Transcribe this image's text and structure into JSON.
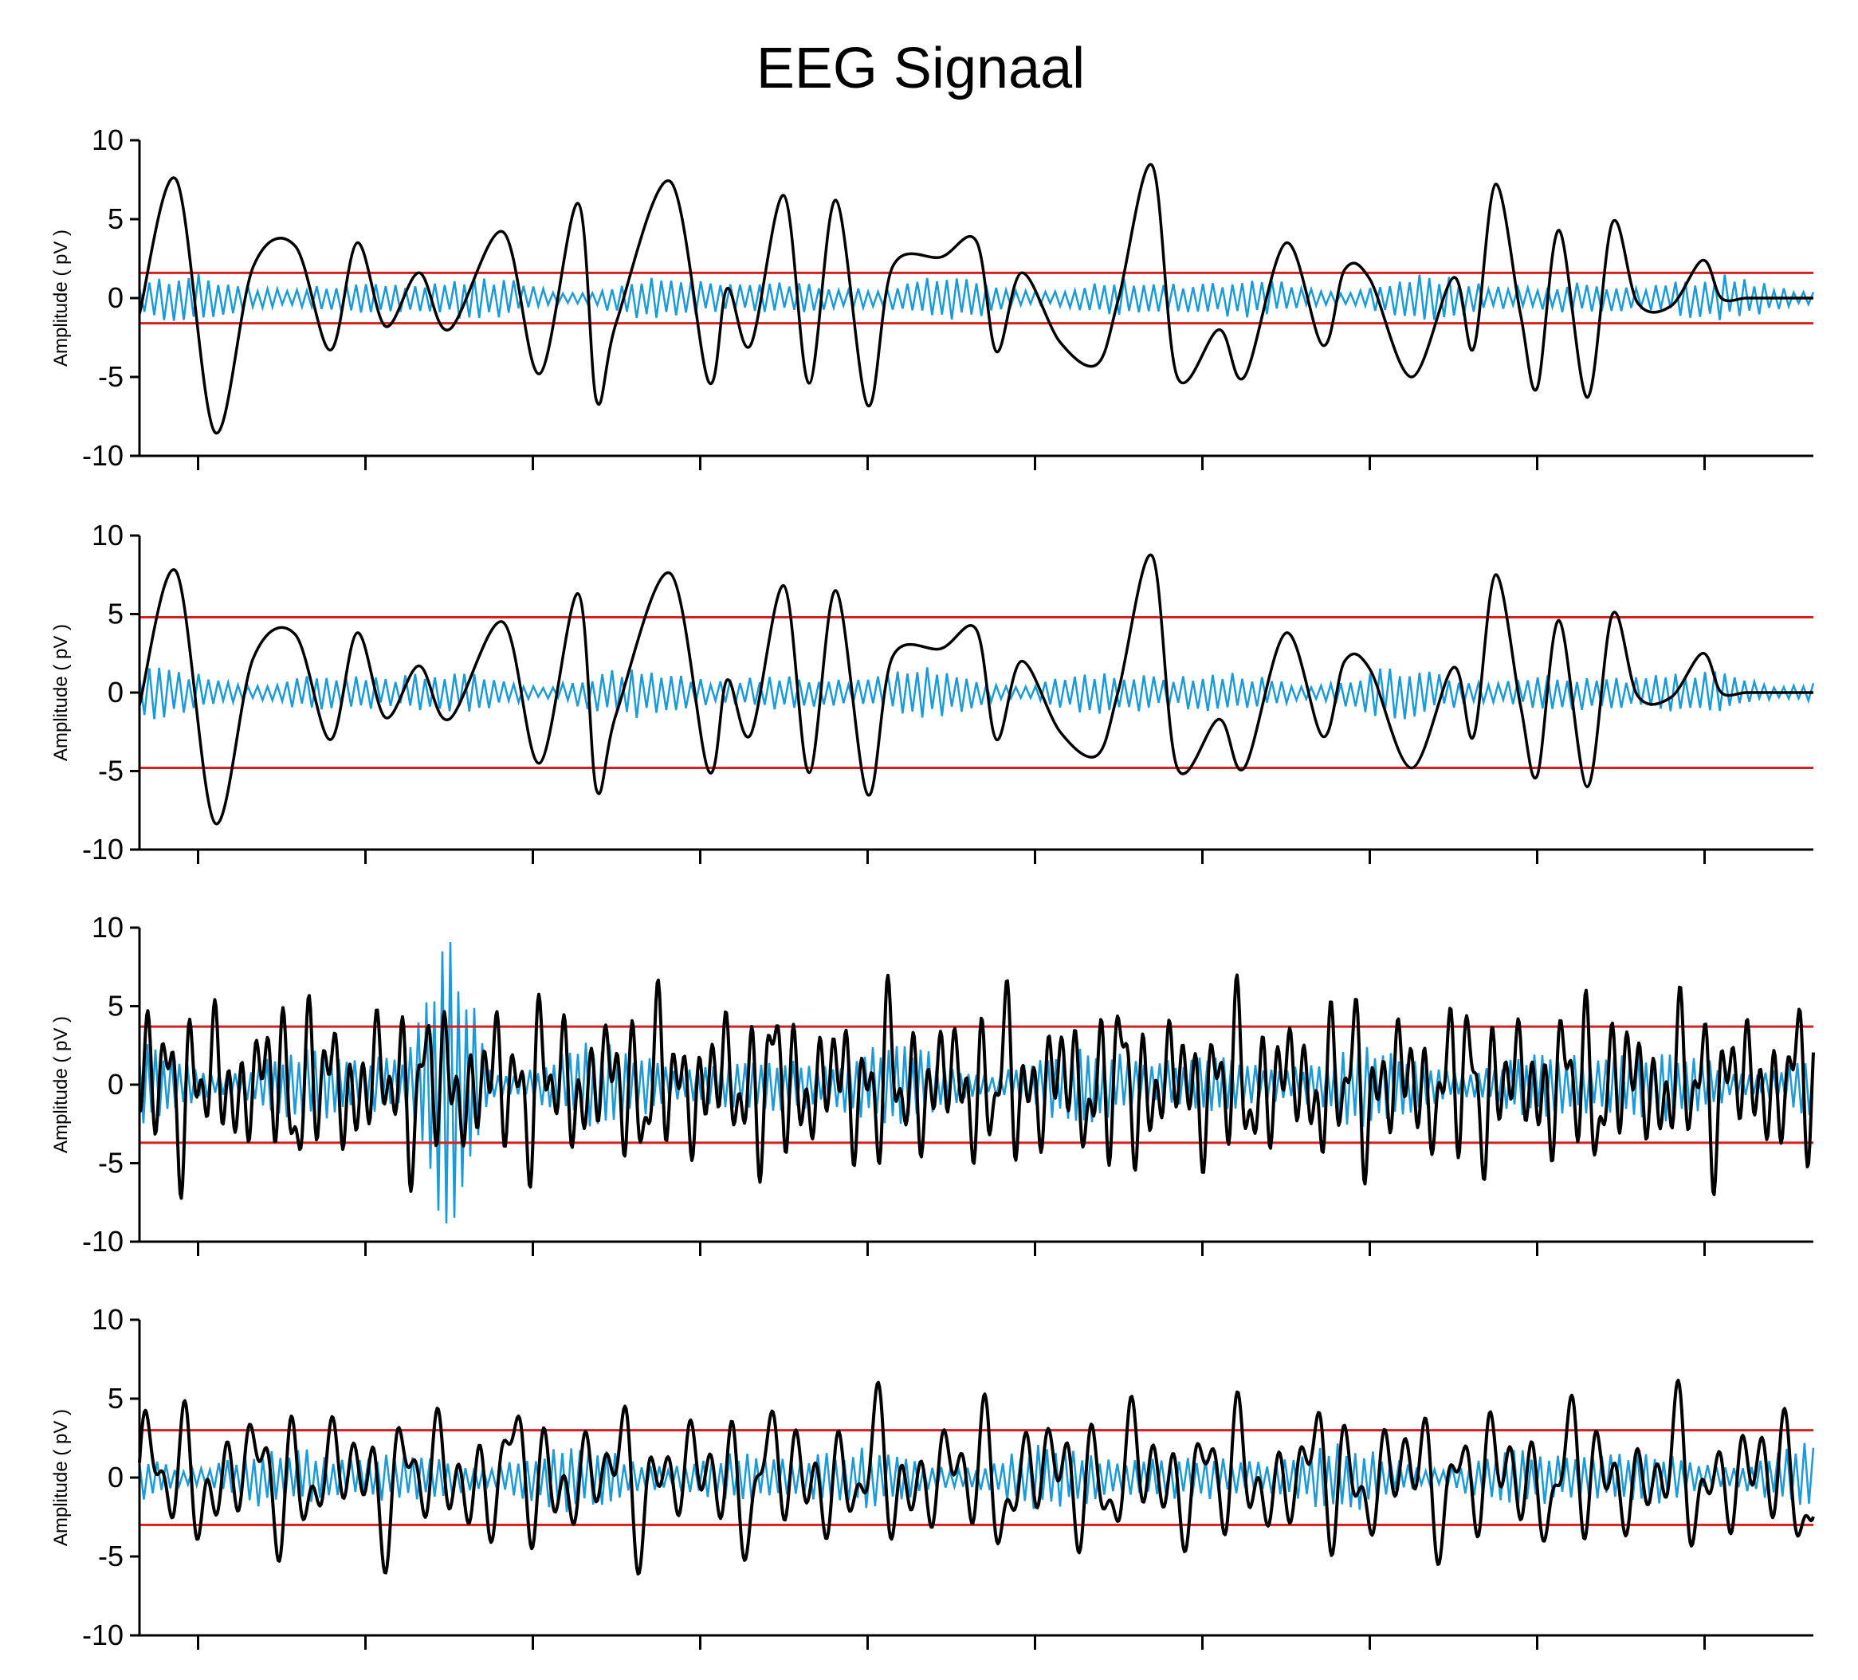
{
  "title": "EEG Signaal",
  "colors": {
    "eeg": "#000000",
    "filtered": "#1a9ad6",
    "threshold": "#d42020"
  },
  "chart_data": [
    {
      "type": "line",
      "ylabel": "Amplitude ( pV )",
      "ylim": [
        -10,
        10
      ],
      "yticks": [
        10,
        5,
        0,
        -5,
        -10
      ],
      "xlim": [
        0,
        100
      ],
      "xticks": [
        3.5,
        13.5,
        23.5,
        33.5,
        43.5,
        53.5,
        63.5,
        73.5,
        83.5,
        93.5
      ],
      "thresholds": [
        1.6,
        -1.6
      ],
      "series": [
        {
          "role": "eeg",
          "x": [
            0,
            2.2,
            4.5,
            6.8,
            9.3,
            11.4,
            13.0,
            14.7,
            16.7,
            18.5,
            21.7,
            23.9,
            26.2,
            27.3,
            28.5,
            31.7,
            34.0,
            35.1,
            36.5,
            38.5,
            40.0,
            41.6,
            43.5,
            45.0,
            47.9,
            50.0,
            51.2,
            52.7,
            55.0,
            57.2,
            58.5,
            60.5,
            62.0,
            64.5,
            66.0,
            68.5,
            70.7,
            72.0,
            73.5,
            76.0,
            78.5,
            79.7,
            81.0,
            82.5,
            83.5,
            84.8,
            86.5,
            88.0,
            89.5,
            91.5,
            93.4,
            94.5,
            96.0,
            98.0,
            99.0,
            100
          ],
          "y": [
            -1,
            7.5,
            -8.5,
            2,
            3.3,
            -3.3,
            3.5,
            -1.8,
            1.6,
            -2,
            4.2,
            -4.8,
            6.0,
            -6.5,
            -1.5,
            7.4,
            -5.3,
            0.6,
            -3,
            6.5,
            -5.4,
            6.2,
            -6.8,
            2,
            2.6,
            3.6,
            -3.4,
            1.6,
            -2.8,
            -4.2,
            0,
            8.4,
            -5,
            -2,
            -5,
            3.5,
            -3,
            1.8,
            1.2,
            -5,
            1.3,
            -3.2,
            7.2,
            -1,
            -5.7,
            4.3,
            -6.3,
            4.8,
            -0.3,
            -0.5,
            2.4,
            0,
            0,
            0,
            0,
            0
          ]
        },
        {
          "role": "filtered",
          "cycles": 170,
          "amplitude": 1.1,
          "envelope": "modulated"
        }
      ]
    },
    {
      "type": "line",
      "ylabel": "Amplitude ( pV )",
      "ylim": [
        -10,
        10
      ],
      "yticks": [
        10,
        5,
        0,
        -5,
        -10
      ],
      "xlim": [
        0,
        100
      ],
      "xticks": [
        3.5,
        13.5,
        23.5,
        33.5,
        43.5,
        53.5,
        63.5,
        73.5,
        83.5,
        93.5
      ],
      "thresholds": [
        4.8,
        -4.8
      ],
      "series": [
        {
          "role": "eeg",
          "x": [
            0,
            2.2,
            4.5,
            6.8,
            9.3,
            11.4,
            13.0,
            14.7,
            16.7,
            18.5,
            21.7,
            23.9,
            26.2,
            27.3,
            28.5,
            31.7,
            34.0,
            35.1,
            36.5,
            38.5,
            40.0,
            41.6,
            43.5,
            45.0,
            47.9,
            50.0,
            51.2,
            52.7,
            55.0,
            57.2,
            58.5,
            60.5,
            62.0,
            64.5,
            66.0,
            68.5,
            70.7,
            72.0,
            73.5,
            76.0,
            78.5,
            79.7,
            81.0,
            82.5,
            83.5,
            84.8,
            86.5,
            88.0,
            89.5,
            91.5,
            93.4,
            94.5,
            96.0,
            98.0,
            99.0,
            100
          ],
          "y": [
            -0.8,
            7.7,
            -8.3,
            2.2,
            3.7,
            -3,
            3.8,
            -1.6,
            1.7,
            -1.7,
            4.5,
            -4.5,
            6.3,
            -6.2,
            -1.3,
            7.6,
            -5,
            0.8,
            -2.7,
            6.8,
            -5.1,
            6.5,
            -6.5,
            2.3,
            2.8,
            4,
            -3,
            2,
            -2.5,
            -4,
            0.2,
            8.7,
            -4.8,
            -1.7,
            -4.8,
            3.8,
            -2.8,
            2,
            1.5,
            -4.8,
            1.6,
            -2.8,
            7.5,
            -0.8,
            -5.3,
            4.6,
            -6,
            5,
            -0.2,
            -0.3,
            2.5,
            0,
            0,
            0,
            0,
            0
          ]
        },
        {
          "role": "filtered",
          "cycles": 170,
          "amplitude": 1.2,
          "envelope": "modulated"
        }
      ]
    },
    {
      "type": "line",
      "ylabel": "Amplitude ( pV )",
      "ylim": [
        -10,
        10
      ],
      "yticks": [
        10,
        5,
        0,
        -5,
        -10
      ],
      "xlim": [
        0,
        100
      ],
      "xticks": [
        3.5,
        13.5,
        23.5,
        33.5,
        43.5,
        53.5,
        63.5,
        73.5,
        83.5,
        93.5
      ],
      "thresholds": [
        3.7,
        -3.7
      ],
      "series": [
        {
          "role": "eeg",
          "cycles": 72,
          "amplitude": 4.5,
          "peaks": [
            6,
            -7.4,
            6.8,
            -7.5,
            7.0,
            -7.4,
            6.9,
            -7.3
          ]
        },
        {
          "role": "filtered",
          "cycles": 210,
          "amplitude": 2.0,
          "burst_at": 18.5,
          "burst_amplitude": 8.5
        }
      ]
    },
    {
      "type": "line",
      "ylabel": "Amplitude ( pV )",
      "ylim": [
        -10,
        10
      ],
      "yticks": [
        10,
        5,
        0,
        -5,
        -10
      ],
      "xlim": [
        0,
        100
      ],
      "xticks": [
        3.5,
        13.5,
        23.5,
        33.5,
        43.5,
        53.5,
        63.5,
        73.5,
        83.5,
        93.5
      ],
      "thresholds": [
        3.0,
        -3.0
      ],
      "series": [
        {
          "role": "eeg",
          "cycles": 46,
          "amplitude": 4.0,
          "peaks": [
            6,
            -6.8,
            6.6,
            -6.8,
            6.2,
            -5.6,
            6.6,
            -4.5
          ]
        },
        {
          "role": "filtered",
          "cycles": 190,
          "amplitude": 1.6,
          "envelope": "modulated"
        }
      ]
    }
  ]
}
